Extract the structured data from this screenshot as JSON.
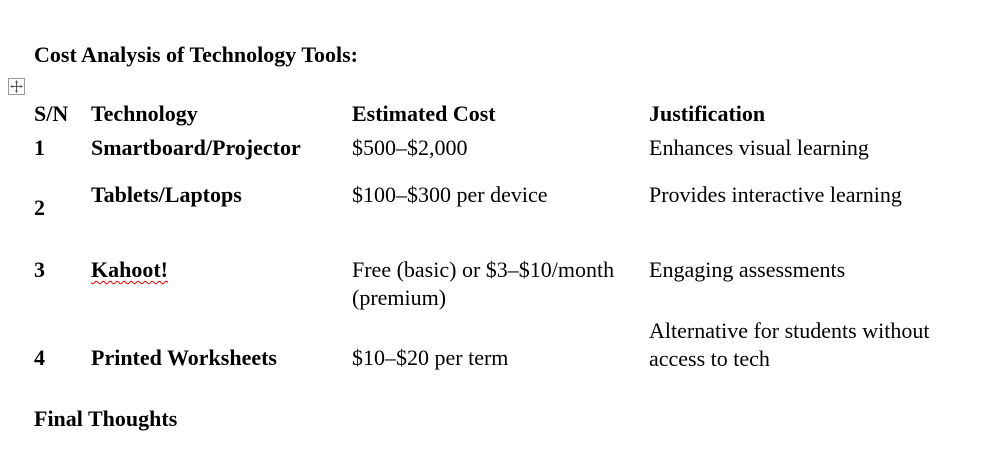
{
  "document": {
    "section_title": "Cost Analysis of Technology Tools:",
    "final_title": "Final Thoughts"
  },
  "table": {
    "move_handle_icon": "table-move-handle-icon",
    "headers": [
      "S/N",
      "Technology",
      "Estimated Cost",
      "Justification"
    ],
    "rows": [
      {
        "sn": "1",
        "technology": "Smartboard/Projector",
        "cost": "$500–$2,000",
        "justification": "Enhances visual learning"
      },
      {
        "sn": "2",
        "technology": "Tablets/Laptops",
        "cost": "$100–$300 per device",
        "justification": "Provides interactive learning"
      },
      {
        "sn": "3",
        "technology": "Kahoot!",
        "cost": "Free (basic) or $3–$10/month (premium)",
        "justification": "Engaging assessments"
      },
      {
        "sn": "4",
        "technology": "Printed Worksheets",
        "cost": "$10–$20 per term",
        "justification": "Alternative for students without access to tech"
      }
    ]
  },
  "colors": {
    "text": "#000000",
    "spellcheck_underline": "#e00000",
    "handle_border": "#9a9a9a"
  }
}
